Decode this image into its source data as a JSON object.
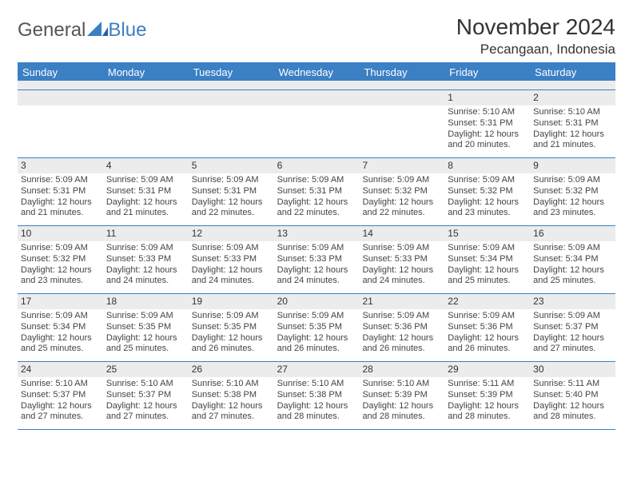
{
  "brand": {
    "part1": "General",
    "part2": "Blue"
  },
  "title": "November 2024",
  "location": "Pecangaan, Indonesia",
  "colors": {
    "header_bg": "#3b7fc4",
    "header_text": "#ffffff",
    "daynum_bg": "#ececec",
    "border": "#3b7fc4",
    "body_text": "#444444",
    "page_bg": "#ffffff"
  },
  "day_labels": [
    "Sunday",
    "Monday",
    "Tuesday",
    "Wednesday",
    "Thursday",
    "Friday",
    "Saturday"
  ],
  "weeks": [
    [
      {
        "num": "",
        "lines": []
      },
      {
        "num": "",
        "lines": []
      },
      {
        "num": "",
        "lines": []
      },
      {
        "num": "",
        "lines": []
      },
      {
        "num": "",
        "lines": []
      },
      {
        "num": "1",
        "lines": [
          "Sunrise: 5:10 AM",
          "Sunset: 5:31 PM",
          "Daylight: 12 hours",
          "and 20 minutes."
        ]
      },
      {
        "num": "2",
        "lines": [
          "Sunrise: 5:10 AM",
          "Sunset: 5:31 PM",
          "Daylight: 12 hours",
          "and 21 minutes."
        ]
      }
    ],
    [
      {
        "num": "3",
        "lines": [
          "Sunrise: 5:09 AM",
          "Sunset: 5:31 PM",
          "Daylight: 12 hours",
          "and 21 minutes."
        ]
      },
      {
        "num": "4",
        "lines": [
          "Sunrise: 5:09 AM",
          "Sunset: 5:31 PM",
          "Daylight: 12 hours",
          "and 21 minutes."
        ]
      },
      {
        "num": "5",
        "lines": [
          "Sunrise: 5:09 AM",
          "Sunset: 5:31 PM",
          "Daylight: 12 hours",
          "and 22 minutes."
        ]
      },
      {
        "num": "6",
        "lines": [
          "Sunrise: 5:09 AM",
          "Sunset: 5:31 PM",
          "Daylight: 12 hours",
          "and 22 minutes."
        ]
      },
      {
        "num": "7",
        "lines": [
          "Sunrise: 5:09 AM",
          "Sunset: 5:32 PM",
          "Daylight: 12 hours",
          "and 22 minutes."
        ]
      },
      {
        "num": "8",
        "lines": [
          "Sunrise: 5:09 AM",
          "Sunset: 5:32 PM",
          "Daylight: 12 hours",
          "and 23 minutes."
        ]
      },
      {
        "num": "9",
        "lines": [
          "Sunrise: 5:09 AM",
          "Sunset: 5:32 PM",
          "Daylight: 12 hours",
          "and 23 minutes."
        ]
      }
    ],
    [
      {
        "num": "10",
        "lines": [
          "Sunrise: 5:09 AM",
          "Sunset: 5:32 PM",
          "Daylight: 12 hours",
          "and 23 minutes."
        ]
      },
      {
        "num": "11",
        "lines": [
          "Sunrise: 5:09 AM",
          "Sunset: 5:33 PM",
          "Daylight: 12 hours",
          "and 24 minutes."
        ]
      },
      {
        "num": "12",
        "lines": [
          "Sunrise: 5:09 AM",
          "Sunset: 5:33 PM",
          "Daylight: 12 hours",
          "and 24 minutes."
        ]
      },
      {
        "num": "13",
        "lines": [
          "Sunrise: 5:09 AM",
          "Sunset: 5:33 PM",
          "Daylight: 12 hours",
          "and 24 minutes."
        ]
      },
      {
        "num": "14",
        "lines": [
          "Sunrise: 5:09 AM",
          "Sunset: 5:33 PM",
          "Daylight: 12 hours",
          "and 24 minutes."
        ]
      },
      {
        "num": "15",
        "lines": [
          "Sunrise: 5:09 AM",
          "Sunset: 5:34 PM",
          "Daylight: 12 hours",
          "and 25 minutes."
        ]
      },
      {
        "num": "16",
        "lines": [
          "Sunrise: 5:09 AM",
          "Sunset: 5:34 PM",
          "Daylight: 12 hours",
          "and 25 minutes."
        ]
      }
    ],
    [
      {
        "num": "17",
        "lines": [
          "Sunrise: 5:09 AM",
          "Sunset: 5:34 PM",
          "Daylight: 12 hours",
          "and 25 minutes."
        ]
      },
      {
        "num": "18",
        "lines": [
          "Sunrise: 5:09 AM",
          "Sunset: 5:35 PM",
          "Daylight: 12 hours",
          "and 25 minutes."
        ]
      },
      {
        "num": "19",
        "lines": [
          "Sunrise: 5:09 AM",
          "Sunset: 5:35 PM",
          "Daylight: 12 hours",
          "and 26 minutes."
        ]
      },
      {
        "num": "20",
        "lines": [
          "Sunrise: 5:09 AM",
          "Sunset: 5:35 PM",
          "Daylight: 12 hours",
          "and 26 minutes."
        ]
      },
      {
        "num": "21",
        "lines": [
          "Sunrise: 5:09 AM",
          "Sunset: 5:36 PM",
          "Daylight: 12 hours",
          "and 26 minutes."
        ]
      },
      {
        "num": "22",
        "lines": [
          "Sunrise: 5:09 AM",
          "Sunset: 5:36 PM",
          "Daylight: 12 hours",
          "and 26 minutes."
        ]
      },
      {
        "num": "23",
        "lines": [
          "Sunrise: 5:09 AM",
          "Sunset: 5:37 PM",
          "Daylight: 12 hours",
          "and 27 minutes."
        ]
      }
    ],
    [
      {
        "num": "24",
        "lines": [
          "Sunrise: 5:10 AM",
          "Sunset: 5:37 PM",
          "Daylight: 12 hours",
          "and 27 minutes."
        ]
      },
      {
        "num": "25",
        "lines": [
          "Sunrise: 5:10 AM",
          "Sunset: 5:37 PM",
          "Daylight: 12 hours",
          "and 27 minutes."
        ]
      },
      {
        "num": "26",
        "lines": [
          "Sunrise: 5:10 AM",
          "Sunset: 5:38 PM",
          "Daylight: 12 hours",
          "and 27 minutes."
        ]
      },
      {
        "num": "27",
        "lines": [
          "Sunrise: 5:10 AM",
          "Sunset: 5:38 PM",
          "Daylight: 12 hours",
          "and 28 minutes."
        ]
      },
      {
        "num": "28",
        "lines": [
          "Sunrise: 5:10 AM",
          "Sunset: 5:39 PM",
          "Daylight: 12 hours",
          "and 28 minutes."
        ]
      },
      {
        "num": "29",
        "lines": [
          "Sunrise: 5:11 AM",
          "Sunset: 5:39 PM",
          "Daylight: 12 hours",
          "and 28 minutes."
        ]
      },
      {
        "num": "30",
        "lines": [
          "Sunrise: 5:11 AM",
          "Sunset: 5:40 PM",
          "Daylight: 12 hours",
          "and 28 minutes."
        ]
      }
    ]
  ]
}
